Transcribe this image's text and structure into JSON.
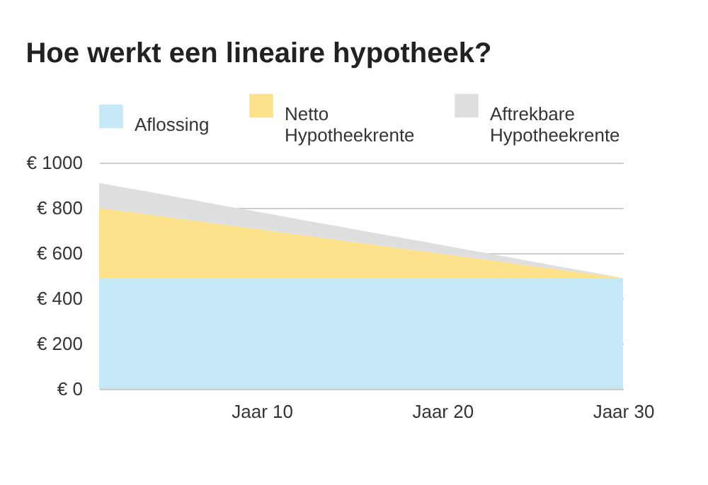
{
  "chart_data": {
    "type": "area",
    "title": "Hoe werkt een lineaire hypotheek?",
    "stacked": true,
    "categories": [
      null,
      null,
      null,
      null,
      null,
      null,
      null,
      null,
      null,
      "Jaar 10",
      null,
      null,
      null,
      null,
      null,
      null,
      null,
      null,
      null,
      "Jaar 20",
      null,
      null,
      null,
      null,
      null,
      null,
      null,
      null,
      null,
      "Jaar 30"
    ],
    "series": [
      {
        "name": "Aflossing",
        "color": "#c5e8f6",
        "values": [
          490,
          490,
          490,
          490,
          490,
          490,
          490,
          490,
          490,
          490,
          490,
          490,
          490,
          490,
          490,
          490,
          490,
          490,
          490,
          490,
          490,
          490,
          490,
          490,
          490,
          490,
          490,
          490,
          490,
          490
        ]
      },
      {
        "name": "Netto Hypotheekrente",
        "color": "#fde08a",
        "values": [
          310,
          299,
          289,
          278,
          267,
          257,
          246,
          235,
          224,
          214,
          203,
          192,
          182,
          171,
          160,
          150,
          139,
          128,
          118,
          107,
          96,
          86,
          75,
          64,
          53,
          43,
          32,
          21,
          11,
          0
        ]
      },
      {
        "name": "Aftrekbare Hypotheekrente",
        "color": "#dedede",
        "values": [
          110,
          106,
          102,
          99,
          95,
          91,
          87,
          83,
          80,
          76,
          72,
          68,
          64,
          61,
          57,
          53,
          49,
          46,
          42,
          38,
          34,
          30,
          27,
          23,
          19,
          15,
          11,
          8,
          4,
          0
        ]
      }
    ],
    "ylim": [
      0,
      1000
    ],
    "yticks": [
      {
        "value": 0,
        "label": "€ 0"
      },
      {
        "value": 200,
        "label": "€ 200"
      },
      {
        "value": 400,
        "label": "€ 400"
      },
      {
        "value": 600,
        "label": "€ 600"
      },
      {
        "value": 800,
        "label": "€ 800"
      },
      {
        "value": 1000,
        "label": "€ 1000"
      }
    ],
    "grid": "y",
    "legend": "top left"
  }
}
